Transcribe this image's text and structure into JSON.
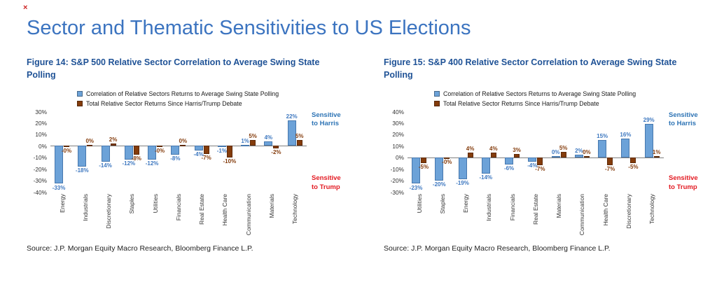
{
  "page": {
    "title": "Sector and Thematic Sensitivities to US Elections",
    "broken_image_marker": "×"
  },
  "colors": {
    "title_blue": "#3C74C0",
    "caption_blue": "#1F5296",
    "bar_blue": "#6CA2D8",
    "bar_brown": "#843C0C",
    "value_label_blue": "#3E78C0",
    "value_label_brown": "#843C0C",
    "harris_blue": "#2E74B5",
    "trump_red": "#E31B23"
  },
  "chart_data": [
    {
      "type": "bar",
      "title": "Figure 14: S&P 500 Relative Sector Correlation to Average Swing State Polling",
      "categories": [
        "Energy",
        "Industrials",
        "Discretionary",
        "Staples",
        "Utilities",
        "Financials",
        "Real Estate",
        "Health Care",
        "Communication",
        "Materials",
        "Technology"
      ],
      "series": [
        {
          "name": "Correlation of Relative Sectors Returns to Average Swing State Polling",
          "color": "#6CA2D8",
          "values": [
            -33,
            -18,
            -14,
            -12,
            -12,
            -8,
            -4,
            -1,
            1,
            4,
            22
          ],
          "labels": [
            "-33%",
            "-18%",
            "-14%",
            "-12%",
            "-12%",
            "-8%",
            "-4%",
            "-1%",
            "1%",
            "4%",
            "22%"
          ]
        },
        {
          "name": "Total Relative Sector Returns Since Harris/Trump Debate",
          "color": "#843C0C",
          "values": [
            0,
            0,
            2,
            -8,
            0,
            0,
            -7,
            -10,
            5,
            -2,
            5
          ],
          "labels": [
            "-0%",
            "0%",
            "2%",
            "-8%",
            "-0%",
            "0%",
            "-7%",
            "-10%",
            "5%",
            "-2%",
            "5%"
          ]
        }
      ],
      "ylim": [
        -40,
        30
      ],
      "yticks": [
        30,
        20,
        10,
        0,
        -10,
        -20,
        -30,
        -40
      ],
      "ytick_labels": [
        "30%",
        "20%",
        "10%",
        "0%",
        "-10%",
        "-20%",
        "-30%",
        "-40%"
      ],
      "grid": false,
      "legend_position": "top",
      "annotations": {
        "top": "Sensitive\nto Harris",
        "bottom": "Sensitive\nto Trump"
      },
      "source": "Source: J.P. Morgan Equity Macro Research, Bloomberg Finance L.P."
    },
    {
      "type": "bar",
      "title": "Figure 15: S&P 400 Relative Sector Correlation to Average Swing State Polling",
      "categories": [
        "Utilities",
        "Staples",
        "Energy",
        "Industrials",
        "Financials",
        "Real Estate",
        "Materials",
        "Communication",
        "Health Care",
        "Discretionary",
        "Technology"
      ],
      "series": [
        {
          "name": "Correlation of Relative Sectors Returns to Average Swing State Polling",
          "color": "#6CA2D8",
          "values": [
            -23,
            -20,
            -19,
            -14,
            -6,
            -4,
            0,
            2,
            15,
            16,
            29
          ],
          "labels": [
            "-23%",
            "-20%",
            "-19%",
            "-14%",
            "-6%",
            "-4%",
            "0%",
            "2%",
            "15%",
            "16%",
            "29%"
          ]
        },
        {
          "name": "Total Relative Sector Returns Since Harris/Trump Debate",
          "color": "#843C0C",
          "values": [
            -5,
            0,
            4,
            4,
            3,
            -7,
            5,
            0,
            -7,
            -5,
            1
          ],
          "labels": [
            "-5%",
            "-0%",
            "4%",
            "4%",
            "3%",
            "-7%",
            "5%",
            "0%",
            "-7%",
            "-5%",
            "1%"
          ]
        }
      ],
      "ylim": [
        -30,
        40
      ],
      "yticks": [
        40,
        30,
        20,
        10,
        0,
        -10,
        -20,
        -30
      ],
      "ytick_labels": [
        "40%",
        "30%",
        "20%",
        "10%",
        "0%",
        "-10%",
        "-20%",
        "-30%"
      ],
      "grid": false,
      "legend_position": "top",
      "annotations": {
        "top": "Sensitive\nto Harris",
        "bottom": "Sensitive\nto Trump"
      },
      "source": "Source: J.P. Morgan Equity Macro Research, Bloomberg Finance L.P."
    }
  ]
}
